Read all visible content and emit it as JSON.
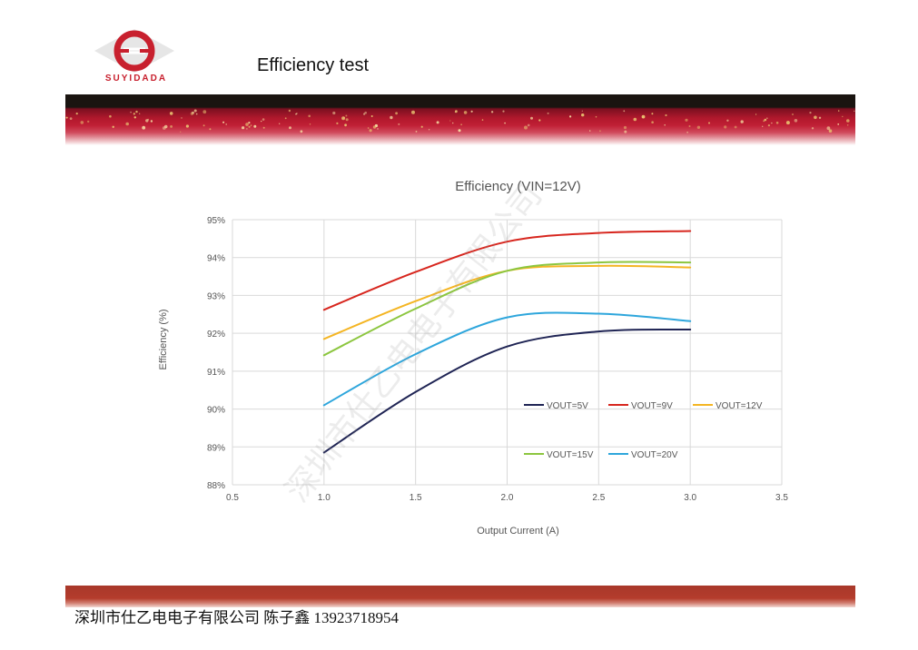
{
  "header": {
    "logo_text": "SUYIDADA",
    "page_title": "Efficiency test"
  },
  "footer": {
    "contact_text": "深圳市仕乙电电子有限公司 陈子鑫 13923718954"
  },
  "watermark": {
    "text": "深圳市仕乙电电子有限公司"
  },
  "colors": {
    "brand_red": "#c8202e",
    "band_dark": "#1a1410",
    "footer_red": "#b43c2c"
  },
  "chart_data": {
    "type": "line",
    "title": "Efficiency (VIN=12V)",
    "xlabel": "Output Current (A)",
    "ylabel": "Efficiency (%)",
    "xlim": [
      0.5,
      3.5
    ],
    "ylim": [
      88,
      95
    ],
    "xticks": [
      0.5,
      1.0,
      1.5,
      2.0,
      2.5,
      3.0,
      3.5
    ],
    "xtick_labels": [
      "0.5",
      "1.0",
      "1.5",
      "2.0",
      "2.5",
      "3.0",
      "3.5"
    ],
    "yticks": [
      88,
      89,
      90,
      91,
      92,
      93,
      94,
      95
    ],
    "ytick_labels": [
      "88%",
      "89%",
      "90%",
      "91%",
      "92%",
      "93%",
      "94%",
      "95%"
    ],
    "grid": true,
    "legend_position": "inside-bottom-right",
    "x": [
      1.0,
      1.5,
      2.0,
      2.5,
      3.0
    ],
    "series": [
      {
        "name": "VOUT=5V",
        "color": "#1f2454",
        "values": [
          88.85,
          90.45,
          91.65,
          92.05,
          92.1
        ]
      },
      {
        "name": "VOUT=9V",
        "color": "#d7261e",
        "values": [
          92.62,
          93.62,
          94.42,
          94.65,
          94.7
        ]
      },
      {
        "name": "VOUT=12V",
        "color": "#f4b523",
        "values": [
          91.85,
          92.85,
          93.65,
          93.78,
          93.74
        ]
      },
      {
        "name": "VOUT=15V",
        "color": "#8cc63f",
        "values": [
          91.42,
          92.65,
          93.65,
          93.87,
          93.87
        ]
      },
      {
        "name": "VOUT=20V",
        "color": "#2ea6dc",
        "values": [
          90.1,
          91.45,
          92.42,
          92.52,
          92.32
        ]
      }
    ]
  }
}
